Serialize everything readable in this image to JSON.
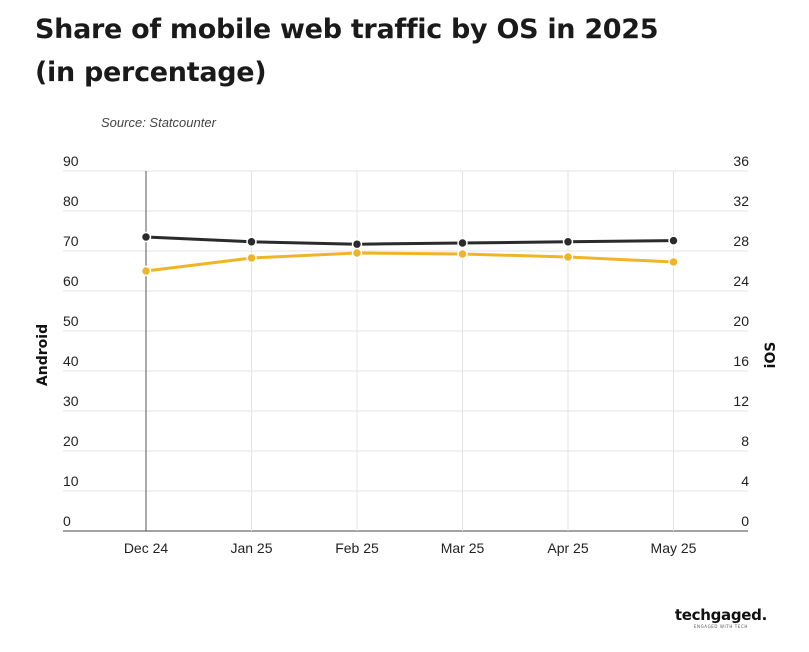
{
  "header": {
    "title_line1": "Share of mobile web traffic by OS in 2025",
    "title_line2": "(in percentage)",
    "source": "Source: Statcounter"
  },
  "branding": {
    "logo_text": "techgaged.",
    "logo_tagline": "ENGAGED WITH TECH"
  },
  "chart_data": {
    "type": "line",
    "title": "Share of mobile web traffic by OS in 2025 (in percentage)",
    "categories": [
      "Dec 24",
      "Jan 25",
      "Feb 25",
      "Mar 25",
      "Apr 25",
      "May 25"
    ],
    "y_left": {
      "label": "Android",
      "ylim": [
        0,
        90
      ],
      "ticks": [
        "90",
        "80",
        "70",
        "60",
        "50",
        "40",
        "30",
        "20",
        "10",
        "0"
      ]
    },
    "y_right": {
      "label": "iOS",
      "ylim": [
        0,
        36
      ],
      "ticks": [
        "36",
        "32",
        "28",
        "24",
        "20",
        "16",
        "12",
        "8",
        "4",
        "0"
      ]
    },
    "series": [
      {
        "name": "Android",
        "axis": "left",
        "color": "#2b2b2b",
        "values": [
          73.5,
          72.3,
          71.7,
          72.0,
          72.3,
          72.6
        ]
      },
      {
        "name": "iOS",
        "axis": "right",
        "color": "#f0b429",
        "values": [
          26.0,
          27.3,
          27.8,
          27.7,
          27.4,
          26.9
        ]
      }
    ],
    "grid": true,
    "legend": "none"
  }
}
